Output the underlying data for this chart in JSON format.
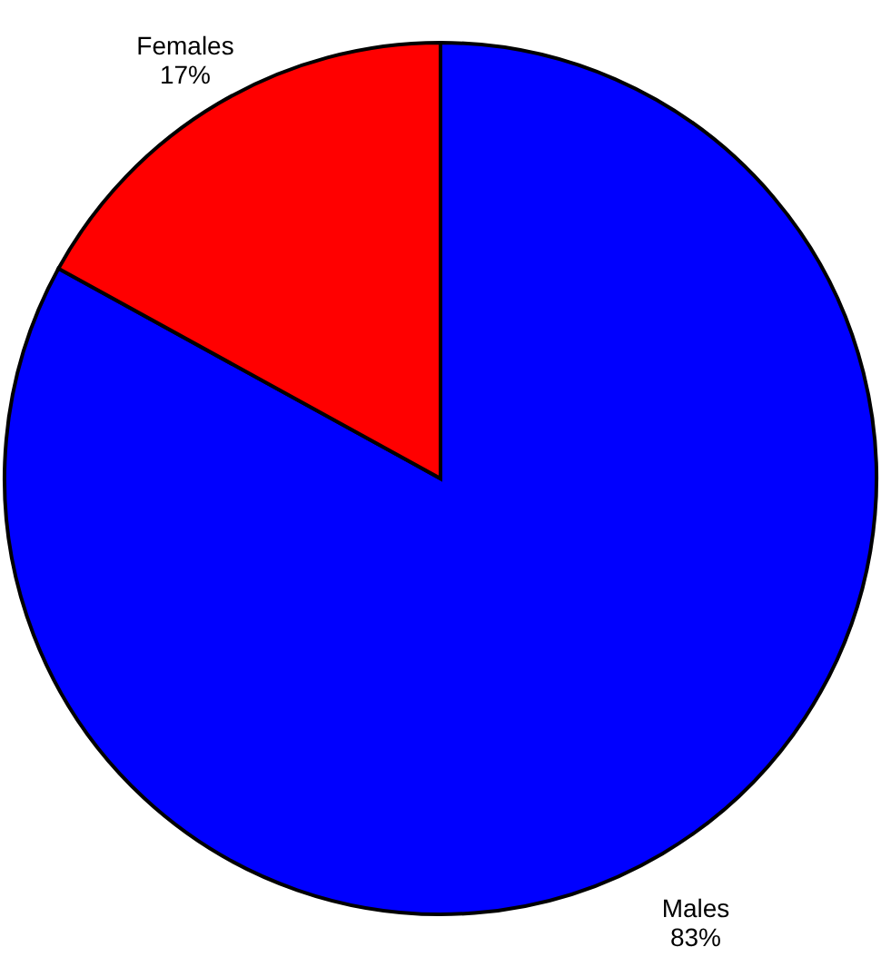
{
  "chart_data": {
    "type": "pie",
    "categories": [
      "Males",
      "Females"
    ],
    "values": [
      83,
      17
    ],
    "value_labels": [
      "83%",
      "17%"
    ],
    "colors": [
      "#0000ff",
      "#ff0000"
    ]
  }
}
